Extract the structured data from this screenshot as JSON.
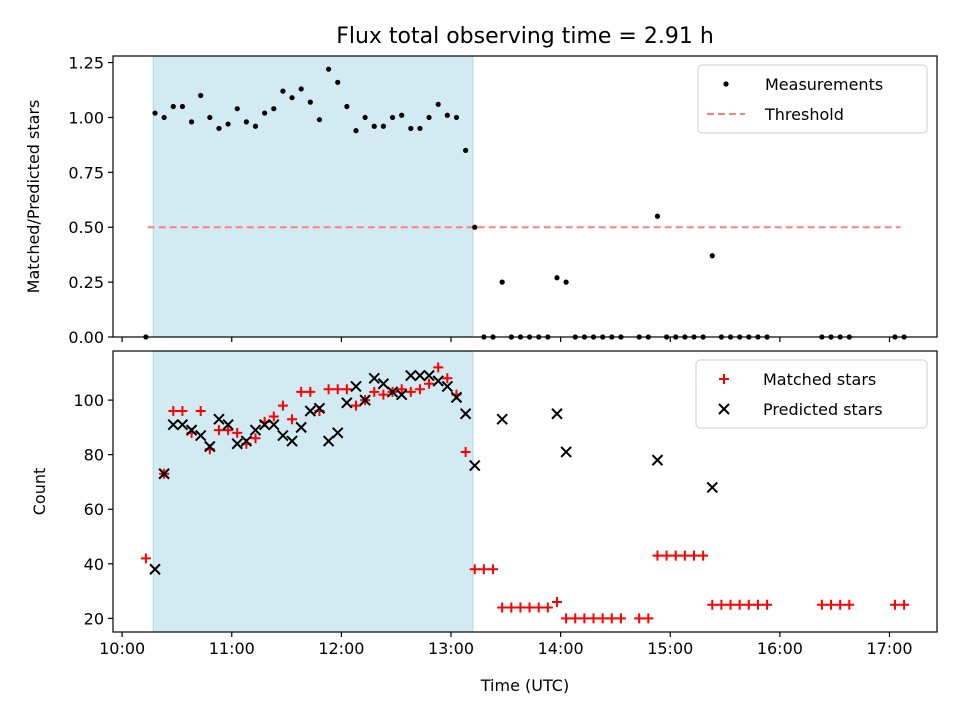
{
  "chart_data": {
    "title": "Flux total observing time = 2.91 h",
    "xlabel": "Time (UTC)",
    "x_ticks": [
      "10:00",
      "11:00",
      "12:00",
      "13:00",
      "14:00",
      "15:00",
      "16:00",
      "17:00"
    ],
    "xlim": [
      "09:55",
      "17:26"
    ],
    "shaded_span": {
      "start": "10:17",
      "end": "13:12",
      "color": "#add8e6"
    },
    "panels": [
      {
        "type": "scatter",
        "ylabel": "Matched/Predicted stars",
        "ylim": [
          0,
          1.28
        ],
        "y_ticks": [
          "0.00",
          "0.25",
          "0.50",
          "0.75",
          "1.00",
          "1.25"
        ],
        "legend_position": "top-right",
        "threshold": {
          "name": "Threshold",
          "y": 0.5,
          "x_start": "10:14",
          "x_end": "17:06",
          "color": "#ff7f7f"
        },
        "series": [
          {
            "name": "Measurements",
            "color": "#000000",
            "points": [
              [
                "10:13",
                0.0
              ],
              [
                "10:18",
                1.02
              ],
              [
                "10:23",
                1.0
              ],
              [
                "10:28",
                1.05
              ],
              [
                "10:33",
                1.05
              ],
              [
                "10:38",
                0.98
              ],
              [
                "10:43",
                1.1
              ],
              [
                "10:48",
                1.0
              ],
              [
                "10:53",
                0.95
              ],
              [
                "10:58",
                0.97
              ],
              [
                "11:03",
                1.04
              ],
              [
                "11:08",
                0.98
              ],
              [
                "11:13",
                0.96
              ],
              [
                "11:18",
                1.02
              ],
              [
                "11:23",
                1.04
              ],
              [
                "11:28",
                1.12
              ],
              [
                "11:33",
                1.09
              ],
              [
                "11:38",
                1.13
              ],
              [
                "11:43",
                1.07
              ],
              [
                "11:48",
                0.99
              ],
              [
                "11:53",
                1.22
              ],
              [
                "11:58",
                1.16
              ],
              [
                "12:03",
                1.05
              ],
              [
                "12:08",
                0.94
              ],
              [
                "12:13",
                1.0
              ],
              [
                "12:18",
                0.96
              ],
              [
                "12:23",
                0.96
              ],
              [
                "12:28",
                1.0
              ],
              [
                "12:33",
                1.01
              ],
              [
                "12:38",
                0.95
              ],
              [
                "12:43",
                0.95
              ],
              [
                "12:48",
                1.0
              ],
              [
                "12:53",
                1.06
              ],
              [
                "12:58",
                1.01
              ],
              [
                "13:03",
                1.0
              ],
              [
                "13:08",
                0.85
              ],
              [
                "13:13",
                0.5
              ],
              [
                "13:18",
                0.0
              ],
              [
                "13:23",
                0.0
              ],
              [
                "13:28",
                0.25
              ],
              [
                "13:33",
                0.0
              ],
              [
                "13:38",
                0.0
              ],
              [
                "13:43",
                0.0
              ],
              [
                "13:48",
                0.0
              ],
              [
                "13:53",
                0.0
              ],
              [
                "13:58",
                0.27
              ],
              [
                "14:03",
                0.25
              ],
              [
                "14:08",
                0.0
              ],
              [
                "14:13",
                0.0
              ],
              [
                "14:18",
                0.0
              ],
              [
                "14:23",
                0.0
              ],
              [
                "14:28",
                0.0
              ],
              [
                "14:33",
                0.0
              ],
              [
                "14:43",
                0.0
              ],
              [
                "14:48",
                0.0
              ],
              [
                "14:53",
                0.55
              ],
              [
                "14:58",
                0.0
              ],
              [
                "15:03",
                0.0
              ],
              [
                "15:08",
                0.0
              ],
              [
                "15:13",
                0.0
              ],
              [
                "15:18",
                0.0
              ],
              [
                "15:23",
                0.37
              ],
              [
                "15:28",
                0.0
              ],
              [
                "15:33",
                0.0
              ],
              [
                "15:38",
                0.0
              ],
              [
                "15:43",
                0.0
              ],
              [
                "15:48",
                0.0
              ],
              [
                "15:53",
                0.0
              ],
              [
                "16:23",
                0.0
              ],
              [
                "16:28",
                0.0
              ],
              [
                "16:33",
                0.0
              ],
              [
                "16:38",
                0.0
              ],
              [
                "17:03",
                0.0
              ],
              [
                "17:08",
                0.0
              ]
            ]
          }
        ]
      },
      {
        "type": "scatter",
        "ylabel": "Count",
        "ylim": [
          15,
          118
        ],
        "y_ticks": [
          "20",
          "40",
          "60",
          "80",
          "100"
        ],
        "legend_position": "top-right",
        "series": [
          {
            "name": "Matched stars",
            "marker": "+",
            "color": "#ff0000",
            "points": [
              [
                "10:13",
                42
              ],
              [
                "10:23",
                73
              ],
              [
                "10:28",
                96
              ],
              [
                "10:33",
                96
              ],
              [
                "10:38",
                88
              ],
              [
                "10:43",
                96
              ],
              [
                "10:48",
                82
              ],
              [
                "10:53",
                89
              ],
              [
                "10:58",
                89
              ],
              [
                "11:03",
                88
              ],
              [
                "11:08",
                84
              ],
              [
                "11:13",
                86
              ],
              [
                "11:18",
                92
              ],
              [
                "11:23",
                94
              ],
              [
                "11:28",
                98
              ],
              [
                "11:33",
                93
              ],
              [
                "11:38",
                103
              ],
              [
                "11:43",
                103
              ],
              [
                "11:48",
                96
              ],
              [
                "11:53",
                104
              ],
              [
                "11:58",
                104
              ],
              [
                "12:03",
                104
              ],
              [
                "12:08",
                98
              ],
              [
                "12:13",
                100
              ],
              [
                "12:18",
                103
              ],
              [
                "12:23",
                102
              ],
              [
                "12:28",
                103
              ],
              [
                "12:33",
                104
              ],
              [
                "12:38",
                103
              ],
              [
                "12:43",
                104
              ],
              [
                "12:48",
                106
              ],
              [
                "12:53",
                112
              ],
              [
                "12:58",
                108
              ],
              [
                "13:03",
                102
              ],
              [
                "13:08",
                81
              ],
              [
                "13:13",
                38
              ],
              [
                "13:18",
                38
              ],
              [
                "13:23",
                38
              ],
              [
                "13:28",
                24
              ],
              [
                "13:33",
                24
              ],
              [
                "13:38",
                24
              ],
              [
                "13:43",
                24
              ],
              [
                "13:48",
                24
              ],
              [
                "13:53",
                24
              ],
              [
                "13:58",
                26
              ],
              [
                "14:03",
                20
              ],
              [
                "14:08",
                20
              ],
              [
                "14:13",
                20
              ],
              [
                "14:18",
                20
              ],
              [
                "14:23",
                20
              ],
              [
                "14:28",
                20
              ],
              [
                "14:33",
                20
              ],
              [
                "14:43",
                20
              ],
              [
                "14:48",
                20
              ],
              [
                "14:53",
                43
              ],
              [
                "14:58",
                43
              ],
              [
                "15:03",
                43
              ],
              [
                "15:08",
                43
              ],
              [
                "15:13",
                43
              ],
              [
                "15:18",
                43
              ],
              [
                "15:23",
                25
              ],
              [
                "15:28",
                25
              ],
              [
                "15:33",
                25
              ],
              [
                "15:38",
                25
              ],
              [
                "15:43",
                25
              ],
              [
                "15:48",
                25
              ],
              [
                "15:53",
                25
              ],
              [
                "16:23",
                25
              ],
              [
                "16:28",
                25
              ],
              [
                "16:33",
                25
              ],
              [
                "16:38",
                25
              ],
              [
                "17:03",
                25
              ],
              [
                "17:08",
                25
              ]
            ]
          },
          {
            "name": "Predicted stars",
            "marker": "x",
            "color": "#000000",
            "points": [
              [
                "10:18",
                38
              ],
              [
                "10:23",
                73
              ],
              [
                "10:28",
                91
              ],
              [
                "10:33",
                91
              ],
              [
                "10:38",
                89
              ],
              [
                "10:43",
                87
              ],
              [
                "10:48",
                83
              ],
              [
                "10:53",
                93
              ],
              [
                "10:58",
                91
              ],
              [
                "11:03",
                84
              ],
              [
                "11:08",
                85
              ],
              [
                "11:13",
                89
              ],
              [
                "11:18",
                91
              ],
              [
                "11:23",
                91
              ],
              [
                "11:28",
                87
              ],
              [
                "11:33",
                85
              ],
              [
                "11:38",
                90
              ],
              [
                "11:43",
                96
              ],
              [
                "11:48",
                97
              ],
              [
                "11:53",
                85
              ],
              [
                "11:58",
                88
              ],
              [
                "12:03",
                99
              ],
              [
                "12:08",
                105
              ],
              [
                "12:13",
                100
              ],
              [
                "12:18",
                108
              ],
              [
                "12:23",
                106
              ],
              [
                "12:28",
                103
              ],
              [
                "12:33",
                102
              ],
              [
                "12:38",
                109
              ],
              [
                "12:43",
                109
              ],
              [
                "12:48",
                109
              ],
              [
                "12:53",
                107
              ],
              [
                "12:58",
                105
              ],
              [
                "13:03",
                101
              ],
              [
                "13:08",
                95
              ],
              [
                "13:13",
                76
              ],
              [
                "13:28",
                93
              ],
              [
                "13:58",
                95
              ],
              [
                "14:03",
                81
              ],
              [
                "14:53",
                78
              ],
              [
                "15:23",
                68
              ]
            ]
          }
        ]
      }
    ]
  }
}
